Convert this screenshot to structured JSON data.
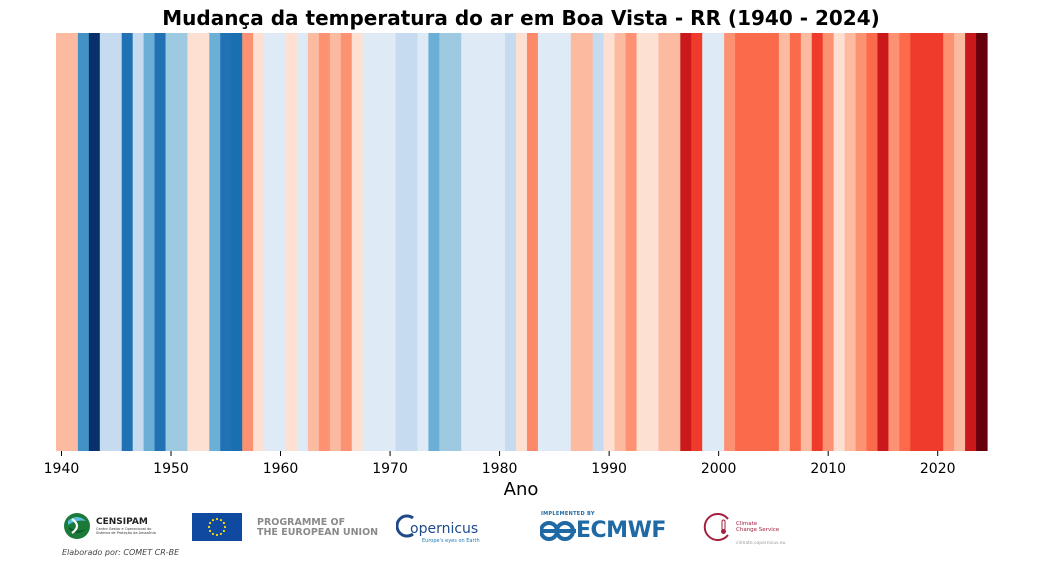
{
  "chart_data": {
    "type": "heatmap",
    "title": "Mudança da temperatura do ar em Boa Vista - RR (1940 - 2024)",
    "xlabel": "Ano",
    "ylabel": "",
    "start_year": 1940,
    "end_year": 2024,
    "x_ticks": [
      1940,
      1950,
      1960,
      1970,
      1980,
      1990,
      2000,
      2010,
      2020
    ],
    "x_tick_labels": [
      "1940",
      "1950",
      "1960",
      "1970",
      "1980",
      "1990",
      "2000",
      "2010",
      "2020"
    ],
    "grid": false,
    "legend": false,
    "stripe_colors": [
      "#fcbba1",
      "#fcbba1",
      "#4292c6",
      "#08306b",
      "#c6dbef",
      "#c6dbef",
      "#2171b5",
      "#c6dbef",
      "#6baed6",
      "#2171b5",
      "#9ecae1",
      "#9ecae1",
      "#fee0d2",
      "#fee0d2",
      "#6baed6",
      "#2171b5",
      "#1a6fb0",
      "#fc9272",
      "#fee0d2",
      "#deebf7",
      "#deebf7",
      "#fee0d2",
      "#deebf7",
      "#fcbba1",
      "#fc9272",
      "#fcbba1",
      "#fc9272",
      "#fee0d2",
      "#deebf7",
      "#deebf7",
      "#deebf7",
      "#c6dbef",
      "#c6dbef",
      "#deebf7",
      "#6baed6",
      "#9ecae1",
      "#9ecae1",
      "#deebf7",
      "#deebf7",
      "#deebf7",
      "#deebf7",
      "#c6dbef",
      "#fee0d2",
      "#fc8a6a",
      "#deebf7",
      "#deebf7",
      "#deebf7",
      "#fcbba1",
      "#fcbba1",
      "#c6dbef",
      "#fee0d2",
      "#fcbba1",
      "#fc9272",
      "#fee0d2",
      "#fee0d2",
      "#fcbba1",
      "#fcbba1",
      "#cb181d",
      "#ef3b2c",
      "#deebf7",
      "#deebf7",
      "#fc9272",
      "#fb6a4a",
      "#fb6a4a",
      "#fb6a4a",
      "#fb6a4a",
      "#fcbba1",
      "#fb6a4a",
      "#fcbba1",
      "#ef3b2c",
      "#fc9272",
      "#fee0d2",
      "#fcbba1",
      "#fc9272",
      "#fb6a4a",
      "#cb181d",
      "#fc9272",
      "#fb6a4a",
      "#ef3b2c",
      "#ef3b2c",
      "#ef3b2c",
      "#fc9272",
      "#fcbba1",
      "#cb181d",
      "#67000d"
    ]
  },
  "logos": {
    "censipam_name": "CENSIPAM",
    "censipam_subtitle": "Centro Gestor e Operacional do Sistema de Proteção da Amazônia",
    "eu_line1": "PROGRAMME OF",
    "eu_line2": "THE EUROPEAN UNION",
    "copernicus_word": "opernicus",
    "copernicus_tagline": "Europe's eyes on Earth",
    "ecmwf_implemented": "IMPLEMENTED BY",
    "ecmwf_word": "ECMWF",
    "c3s_line1": "Climate",
    "c3s_line2": "Change Service",
    "c3s_url": "climate.copernicus.eu"
  },
  "credit": "Elaborado por: COMET CR-BE"
}
